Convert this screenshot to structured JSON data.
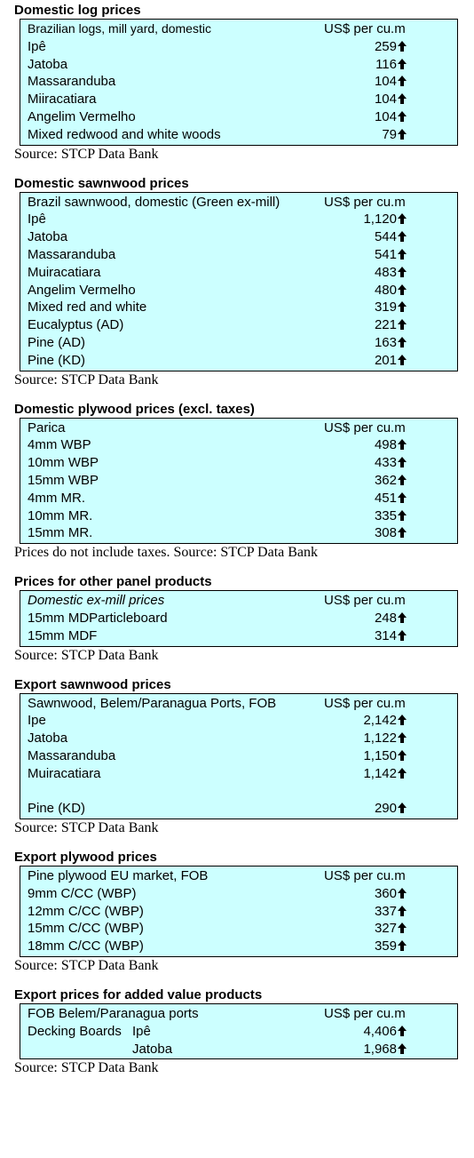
{
  "sections": [
    {
      "title": "Domestic log prices",
      "header": [
        "Brazilian logs, mill yard, domestic",
        "US$ per cu.m"
      ],
      "groups": [
        {
          "rows": [
            {
              "name": "Ipê",
              "value": "259"
            },
            {
              "name": "Jatoba",
              "value": "116"
            },
            {
              "name": "Massaranduba",
              "value": "104"
            },
            {
              "name": "Miiracatiara",
              "value": "104"
            },
            {
              "name": "Angelim Vermelho",
              "value": "104"
            },
            {
              "name": "Mixed redwood and white woods",
              "value": "79"
            }
          ]
        }
      ],
      "source": "Source: STCP Data Bank"
    },
    {
      "title": "Domestic sawnwood prices",
      "header": [
        "Brazil sawnwood, domestic (Green ex-mill)",
        "US$ per cu.m"
      ],
      "groups": [
        {
          "rows": [
            {
              "name": "Ipê",
              "value": "1,120"
            },
            {
              "name": "Jatoba",
              "value": "544"
            },
            {
              "name": "Massaranduba",
              "value": "541"
            },
            {
              "name": "Muiracatiara",
              "value": "483"
            },
            {
              "name": "Angelim Vermelho",
              "value": "480"
            },
            {
              "name": "Mixed red and white",
              "value": "319"
            },
            {
              "name": "Eucalyptus (AD)",
              "value": "221"
            },
            {
              "name": "Pine (AD)",
              "value": "163"
            },
            {
              "name": "Pine (KD)",
              "value": "201"
            }
          ]
        }
      ],
      "source": "Source: STCP Data Bank"
    },
    {
      "title": "Domestic plywood prices (excl. taxes)",
      "header": [
        "Parica",
        "US$ per cu.m"
      ],
      "groups": [
        {
          "rows": [
            {
              "name": "4mm WBP",
              "value": "498"
            },
            {
              "name": "10mm WBP",
              "value": "433"
            },
            {
              "name": "15mm WBP",
              "value": "362"
            },
            {
              "name": "4mm MR.",
              "value": "451"
            },
            {
              "name": "10mm MR.",
              "value": "335"
            },
            {
              "name": "15mm MR.",
              "value": "308"
            }
          ]
        }
      ],
      "source": "Prices do not include taxes. Source: STCP Data Bank"
    },
    {
      "title": "Prices for other panel products",
      "header": [
        "Domestic ex-mill prices",
        "US$ per cu.m"
      ],
      "groups": [
        {
          "rows": [
            {
              "name": "15mm MDParticleboard",
              "value": "248"
            },
            {
              "name": "15mm MDF",
              "value": "314"
            }
          ]
        }
      ],
      "source": "Source: STCP Data Bank"
    },
    {
      "title": "Export sawnwood prices",
      "header": [
        "Sawnwood, Belem/Paranagua Ports, FOB",
        "US$ per cu.m"
      ],
      "groups": [
        {
          "rows": [
            {
              "name": "Ipe",
              "value": "2,142"
            },
            {
              "name": "Jatoba",
              "value": "1,122"
            },
            {
              "name": "Massaranduba",
              "value": "1,150"
            },
            {
              "name": "Muiracatiara",
              "value": "1,142"
            }
          ]
        },
        {
          "rows": [
            {
              "name": "Pine (KD)",
              "value": "290"
            }
          ]
        }
      ],
      "source": "Source: STCP Data Bank"
    },
    {
      "title": "Export plywood prices",
      "header": [
        "Pine plywood EU market, FOB",
        "US$ per cu.m"
      ],
      "groups": [
        {
          "rows": [
            {
              "name": "9mm C/CC (WBP)",
              "value": "360"
            },
            {
              "name": "12mm C/CC (WBP)",
              "value": "337"
            },
            {
              "name": "15mm C/CC (WBP)",
              "value": "327"
            },
            {
              "name": "18mm C/CC (WBP)",
              "value": "359"
            }
          ]
        }
      ],
      "source": "Source: STCP Data Bank"
    },
    {
      "title": "Export prices for added value products",
      "header": [
        "FOB Belem/Paranagua ports",
        "US$ per cu.m"
      ],
      "groups": [
        {
          "label": "Decking Boards",
          "rows": [
            {
              "name": "Ipê",
              "value": "4,406"
            },
            {
              "name": "Jatoba",
              "value": "1,968"
            }
          ]
        }
      ],
      "source": "Source: STCP Data Bank"
    }
  ]
}
